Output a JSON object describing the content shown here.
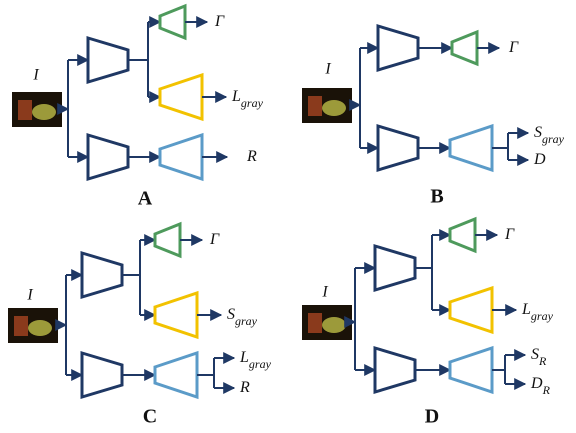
{
  "panels": [
    {
      "label": "A",
      "input": "I",
      "outputs": [
        {
          "base": "Γ"
        },
        {
          "base": "L",
          "sub": "gray"
        },
        {
          "base": "R"
        }
      ]
    },
    {
      "label": "B",
      "input": "I",
      "outputs": [
        {
          "base": "Γ"
        },
        {
          "base": "S",
          "sub": "gray"
        },
        {
          "base": "D"
        }
      ]
    },
    {
      "label": "C",
      "input": "I",
      "outputs": [
        {
          "base": "Γ"
        },
        {
          "base": "S",
          "sub": "gray"
        },
        {
          "base": "L",
          "sub": "gray"
        },
        {
          "base": "R"
        }
      ]
    },
    {
      "label": "D",
      "input": "I",
      "outputs": [
        {
          "base": "Γ"
        },
        {
          "base": "L",
          "sub": "gray"
        },
        {
          "base": "S",
          "sub": "R"
        },
        {
          "base": "D",
          "sub": "R"
        }
      ]
    }
  ]
}
